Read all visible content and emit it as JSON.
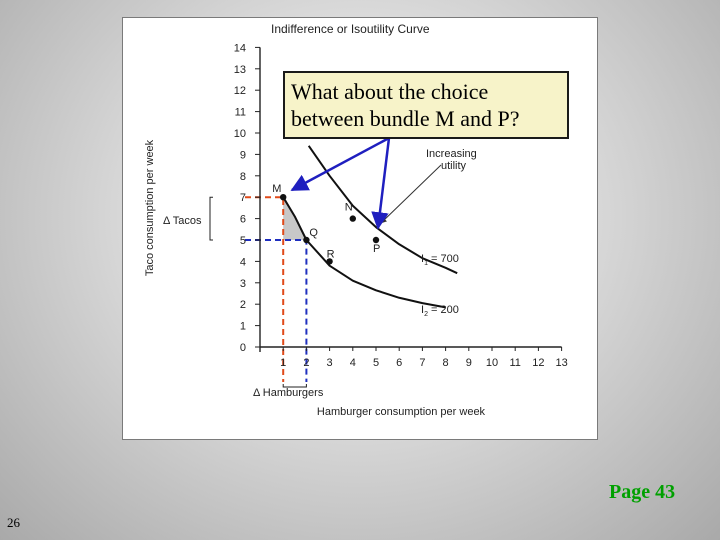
{
  "slide": {
    "callout_line1": "What about the choice",
    "callout_line2": "between bundle M and P?",
    "page_reference": "Page 43",
    "slide_number": "26"
  },
  "colors": {
    "curve": "#111111",
    "arrow": "#1f1fbf",
    "red_dash": "#e04a1a",
    "blue_dash": "#1f2fbf",
    "shade": "#c8c8c8",
    "page_reference": "#00a000"
  },
  "chart_data": {
    "type": "line",
    "title": "Indifference or Isoutility Curve",
    "xlabel": "Hamburger consumption per week",
    "ylabel": "Taco consumption per week",
    "xlim": [
      0,
      13
    ],
    "ylim": [
      0,
      14
    ],
    "x_ticks": [
      "1",
      "2",
      "3",
      "4",
      "5",
      "6",
      "7",
      "8",
      "9",
      "10",
      "11",
      "12",
      "13"
    ],
    "y_ticks": [
      "0",
      "1",
      "2",
      "3",
      "4",
      "5",
      "6",
      "7",
      "8",
      "9",
      "10",
      "11",
      "12",
      "13",
      "14"
    ],
    "series": [
      {
        "name": "I2 = 200",
        "x": [
          1,
          1.5,
          2,
          3,
          4,
          5,
          6,
          7,
          8
        ],
        "y": [
          7.0,
          6.1,
          5.0,
          3.8,
          3.1,
          2.65,
          2.3,
          2.05,
          1.85
        ]
      },
      {
        "name": "I1 = 700",
        "x": [
          2.1,
          3,
          4,
          5,
          6,
          7,
          8,
          8.5
        ],
        "y": [
          9.4,
          8.0,
          6.6,
          5.6,
          4.8,
          4.15,
          3.7,
          3.45
        ]
      }
    ],
    "points": [
      {
        "label": "M",
        "x": 1,
        "y": 7
      },
      {
        "label": "Q",
        "x": 2,
        "y": 5
      },
      {
        "label": "R",
        "x": 3,
        "y": 4
      },
      {
        "label": "N",
        "x": 4,
        "y": 6
      },
      {
        "label": "P",
        "x": 5,
        "y": 5
      }
    ],
    "curve_labels": [
      {
        "label": "I",
        "subscript": "1",
        "value": "= 700"
      },
      {
        "label": "I",
        "subscript": "2",
        "value": "= 200"
      }
    ],
    "annotations": {
      "increasing_utility_line1": "Increasing",
      "increasing_utility_line2": "utility",
      "delta_tacos": "Δ Tacos",
      "delta_hamburgers": "Δ Hamburgers"
    }
  }
}
